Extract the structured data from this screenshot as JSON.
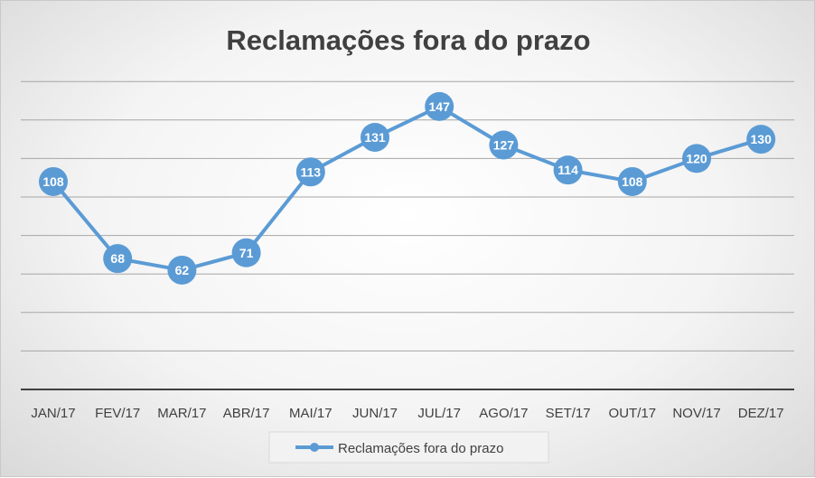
{
  "chart_data": {
    "type": "line",
    "title": "Reclamações fora do prazo",
    "categories": [
      "JAN/17",
      "FEV/17",
      "MAR/17",
      "ABR/17",
      "MAI/17",
      "JUN/17",
      "JUL/17",
      "AGO/17",
      "SET/17",
      "OUT/17",
      "NOV/17",
      "DEZ/17"
    ],
    "series": [
      {
        "name": "Reclamações fora do prazo",
        "values": [
          108,
          68,
          62,
          71,
          113,
          131,
          147,
          127,
          114,
          108,
          120,
          130
        ]
      }
    ],
    "ylim": [
      0,
      160
    ],
    "grid": true,
    "y_axis_labels_visible": false,
    "legend_position": "bottom",
    "colors": {
      "series": "#5b9bd5",
      "grid": "#a6a6a6",
      "axis": "#404040",
      "text": "#404040"
    }
  }
}
